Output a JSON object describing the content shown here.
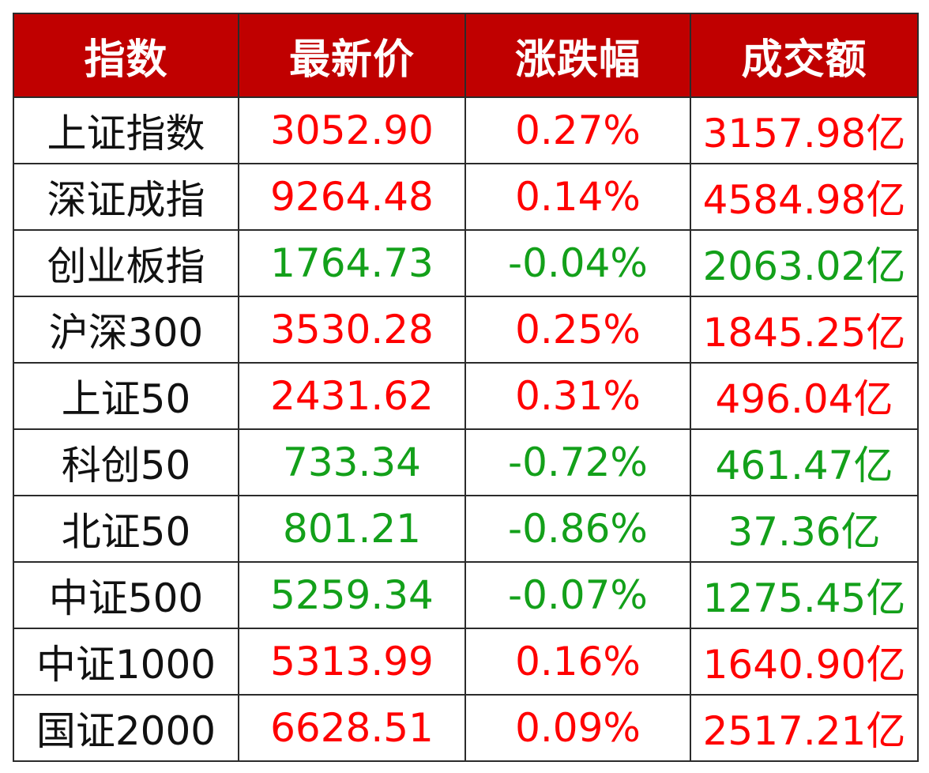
{
  "chart_data": {
    "type": "table",
    "headers": [
      "指数",
      "最新价",
      "涨跌幅",
      "成交额"
    ],
    "rows": [
      {
        "name": "上证指数",
        "price": "3052.90",
        "change": "0.27%",
        "turnover": "3157.98亿",
        "direction": "up"
      },
      {
        "name": "深证成指",
        "price": "9264.48",
        "change": "0.14%",
        "turnover": "4584.98亿",
        "direction": "up"
      },
      {
        "name": "创业板指",
        "price": "1764.73",
        "change": "-0.04%",
        "turnover": "2063.02亿",
        "direction": "down"
      },
      {
        "name": "沪深300",
        "price": "3530.28",
        "change": "0.25%",
        "turnover": "1845.25亿",
        "direction": "up"
      },
      {
        "name": "上证50",
        "price": "2431.62",
        "change": "0.31%",
        "turnover": "496.04亿",
        "direction": "up"
      },
      {
        "name": "科创50",
        "price": "733.34",
        "change": "-0.72%",
        "turnover": "461.47亿",
        "direction": "down"
      },
      {
        "name": "北证50",
        "price": "801.21",
        "change": "-0.86%",
        "turnover": "37.36亿",
        "direction": "down"
      },
      {
        "name": "中证500",
        "price": "5259.34",
        "change": "-0.07%",
        "turnover": "1275.45亿",
        "direction": "down"
      },
      {
        "name": "中证1000",
        "price": "5313.99",
        "change": "0.16%",
        "turnover": "1640.90亿",
        "direction": "up"
      },
      {
        "name": "国证2000",
        "price": "6628.51",
        "change": "0.09%",
        "turnover": "2517.21亿",
        "direction": "up"
      }
    ]
  },
  "colors": {
    "header_bg": "#c00000",
    "header_text": "#ffffff",
    "up": "#ff0000",
    "down": "#13a01a",
    "name_text": "#111111",
    "grid": "#2b2b2b"
  }
}
